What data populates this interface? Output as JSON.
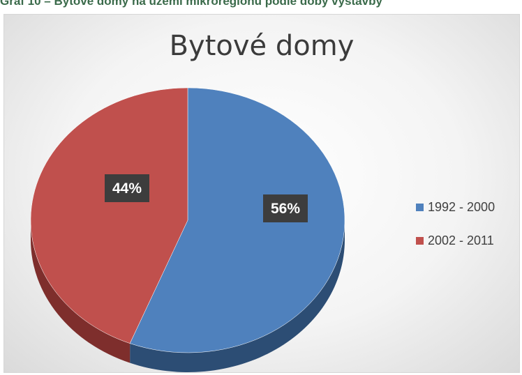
{
  "caption": "Graf 10 – Bytové domy na území mikroregionu podle doby výstavby",
  "chart_data": {
    "type": "pie",
    "title": "Bytové domy",
    "categories": [
      "1992 - 2000",
      "2002 - 2011"
    ],
    "values": [
      56,
      44
    ],
    "labels": [
      "56%",
      "44%"
    ],
    "colors": [
      "#4f81bd",
      "#c0504d"
    ],
    "legend_position": "right"
  }
}
